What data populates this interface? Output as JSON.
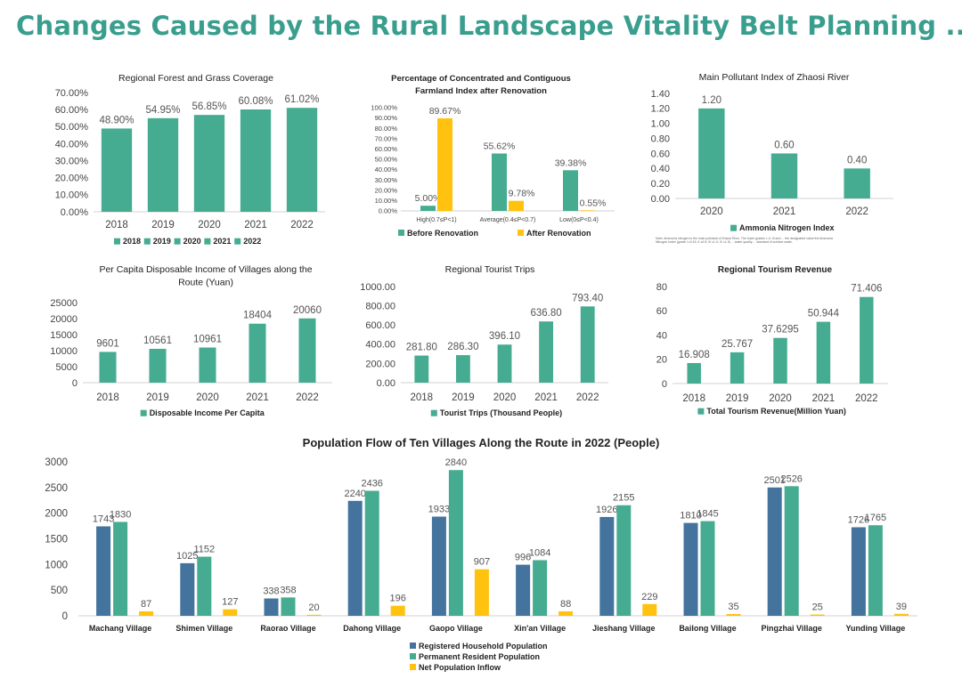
{
  "header": {
    "title": "Changes Caused by the Rural Landscape Vitality Belt Planning ......"
  },
  "colors": {
    "teal": "#45ab91",
    "yellow": "#ffc20e",
    "blue": "#44739e",
    "title": "#3a9e8e"
  },
  "chart_data": [
    {
      "type": "bar",
      "title": "Regional Forest and Grass Coverage",
      "categories": [
        "2018",
        "2019",
        "2020",
        "2021",
        "2022"
      ],
      "values": [
        48.9,
        54.95,
        56.85,
        60.08,
        61.02
      ],
      "value_labels": [
        "48.90%",
        "54.95%",
        "56.85%",
        "60.08%",
        "61.02%"
      ],
      "ylim": [
        0,
        70
      ],
      "yticks": [
        "0.00%",
        "10.00%",
        "20.00%",
        "30.00%",
        "40.00%",
        "50.00%",
        "60.00%",
        "70.00%"
      ],
      "legend": [
        "2018",
        "2019",
        "2020",
        "2021",
        "2022"
      ],
      "legend_position": "bottom"
    },
    {
      "type": "bar",
      "title": "Percentage of Concentrated and Contiguous Farmland Index after Renovation",
      "categories": [
        "High(0.7≤P<1)",
        "Average(0.4≤P<0.7)",
        "Low(0≤P<0.4)"
      ],
      "series": [
        {
          "name": "Before Renovation",
          "values": [
            5.0,
            55.62,
            39.38
          ],
          "labels": [
            "5.00%",
            "55.62%",
            "39.38%"
          ]
        },
        {
          "name": "After Renovation",
          "values": [
            89.67,
            9.78,
            0.55
          ],
          "labels": [
            "89.67%",
            "9.78%",
            "0.55%"
          ]
        }
      ],
      "ylim": [
        0,
        100
      ],
      "yticks": [
        "0.00%",
        "10.00%",
        "20.00%",
        "30.00%",
        "40.00%",
        "50.00%",
        "60.00%",
        "70.00%",
        "80.00%",
        "90.00%",
        "100.00%"
      ],
      "legend_position": "bottom"
    },
    {
      "type": "bar",
      "title": "Main Pollutant Index of Zhaosi River",
      "categories": [
        "2020",
        "2021",
        "2022"
      ],
      "values": [
        1.2,
        0.6,
        0.4
      ],
      "value_labels": [
        "1.20",
        "0.60",
        "0.40"
      ],
      "ylim": [
        0,
        1.4
      ],
      "yticks": [
        "0.00",
        "0.20",
        "0.40",
        "0.60",
        "0.80",
        "1.00",
        "1.20",
        "1.40"
      ],
      "legend": [
        "Ammonia Nitrogen Index"
      ],
      "legend_position": "bottom",
      "note": "Note: Ammonia nitrogen is the main pollutant of Zhaosi River. The lower grades I–II, III and ... the designated value the Ammonia Nitrogen Index (grade I ≤0.15; II ≤0.5; III ≤1.0; IV ≤1.5) ... water quality ... standard of surface water."
    },
    {
      "type": "bar",
      "title": "Per Capita Disposable Income of Villages along the Route (Yuan)",
      "categories": [
        "2018",
        "2019",
        "2020",
        "2021",
        "2022"
      ],
      "values": [
        9601,
        10561,
        10961,
        18404,
        20060
      ],
      "value_labels": [
        "9601",
        "10561",
        "10961",
        "18404",
        "20060"
      ],
      "ylim": [
        0,
        25000
      ],
      "yticks": [
        "0",
        "5000",
        "10000",
        "15000",
        "20000",
        "25000"
      ],
      "legend": [
        "Disposable Income Per Capita"
      ],
      "legend_position": "bottom"
    },
    {
      "type": "bar",
      "title": "Regional Tourist Trips",
      "categories": [
        "2018",
        "2019",
        "2020",
        "2021",
        "2022"
      ],
      "values": [
        281.8,
        286.3,
        396.1,
        636.8,
        793.4
      ],
      "value_labels": [
        "281.80",
        "286.30",
        "396.10",
        "636.80",
        "793.40"
      ],
      "ylim": [
        0,
        1000
      ],
      "yticks": [
        "0.00",
        "200.00",
        "400.00",
        "600.00",
        "800.00",
        "1000.00"
      ],
      "legend": [
        "Tourist Trips (Thousand People)"
      ],
      "legend_position": "bottom"
    },
    {
      "type": "bar",
      "title": "Regional Tourism Revenue",
      "categories": [
        "2018",
        "2019",
        "2020",
        "2021",
        "2022"
      ],
      "values": [
        16.908,
        25.767,
        37.6295,
        50.944,
        71.406
      ],
      "value_labels": [
        "16.908",
        "25.767",
        "37.6295",
        "50.944",
        "71.406"
      ],
      "ylim": [
        0,
        80
      ],
      "yticks": [
        "0",
        "20",
        "40",
        "60",
        "80"
      ],
      "legend": [
        "Total Tourism Revenue(Million Yuan)"
      ],
      "legend_position": "bottom"
    },
    {
      "type": "bar",
      "title": "Population Flow of Ten Villages Along the Route in 2022 (People)",
      "categories": [
        "Machang Village",
        "Shimen Village",
        "Raorao Village",
        "Dahong Village",
        "Gaopo Village",
        "Xin'an Village",
        "Jieshang Village",
        "Bailong Village",
        "Pingzhai Village",
        "Yunding Village"
      ],
      "series": [
        {
          "name": "Registered Household Population",
          "values": [
            1743,
            1025,
            338,
            2240,
            1933,
            996,
            1926,
            1810,
            2501,
            1726
          ]
        },
        {
          "name": "Permanent Resident Population",
          "values": [
            1830,
            1152,
            358,
            2436,
            2840,
            1084,
            2155,
            1845,
            2526,
            1765
          ]
        },
        {
          "name": "Net Population Inflow",
          "values": [
            87,
            127,
            20,
            196,
            907,
            88,
            229,
            35,
            25,
            39
          ]
        }
      ],
      "ylim": [
        0,
        3000
      ],
      "yticks": [
        "0",
        "500",
        "1000",
        "1500",
        "2000",
        "2500",
        "3000"
      ],
      "legend_position": "bottom"
    }
  ]
}
